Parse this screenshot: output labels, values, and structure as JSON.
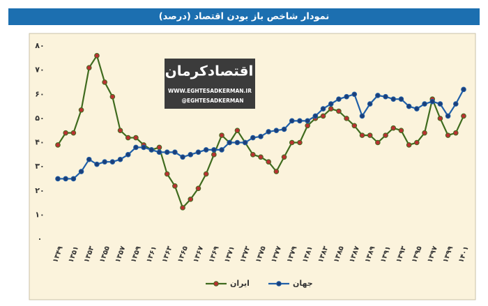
{
  "chart_data": {
    "type": "line",
    "title": "نمودار شاخص باز بودن اقتصاد (درصد)",
    "watermark": {
      "logo": "اقتصادکرمان",
      "site": "WWW.EGHTESADKERMAN.IR",
      "handle": "@EGHTESADKERMAN"
    },
    "categories": [
      "۱۳۴۹",
      null,
      "۱۳۵۱",
      null,
      "۱۳۵۳",
      null,
      "۱۳۵۵",
      null,
      "۱۳۵۷",
      null,
      "۱۳۵۹",
      null,
      "۱۳۶۱",
      null,
      "۱۳۶۳",
      null,
      "۱۳۶۵",
      null,
      "۱۳۶۷",
      null,
      "۱۳۶۹",
      null,
      "۱۳۷۱",
      null,
      "۱۳۷۳",
      null,
      "۱۳۷۵",
      null,
      "۱۳۷۷",
      null,
      "۱۳۷۹",
      null,
      "۱۳۸۱",
      null,
      "۱۳۸۳",
      null,
      "۱۳۸۵",
      null,
      "۱۳۸۷",
      null,
      "۱۳۸۹",
      null,
      "۱۳۹۱",
      null,
      "۱۳۹۳",
      null,
      "۱۳۹۵",
      null,
      "۱۳۹۷",
      null,
      "۱۳۹۹",
      null,
      "۱۴۰۱"
    ],
    "series": [
      {
        "name": "ایران",
        "color": "#3f6b1e",
        "values": [
          39,
          44,
          44,
          53.5,
          71,
          76,
          65,
          59,
          45,
          42,
          42,
          39,
          37,
          38,
          27,
          22,
          13,
          16.5,
          21,
          27,
          35,
          43,
          40,
          45,
          40,
          35,
          34,
          32,
          28,
          34,
          40,
          40,
          47,
          50,
          51,
          54,
          53,
          50,
          47,
          43,
          43,
          40,
          43,
          46,
          45,
          39,
          40,
          44,
          58,
          50,
          43,
          44,
          51
        ]
      },
      {
        "name": "جهان",
        "color": "#1f5fa8",
        "values": [
          25,
          25,
          25,
          28,
          33,
          31,
          32,
          32,
          33,
          35,
          38,
          38,
          37,
          36,
          36,
          36,
          34,
          35,
          36,
          37,
          37,
          37,
          40,
          40,
          40,
          42,
          42.5,
          44.5,
          45,
          45.5,
          49,
          49,
          49,
          51,
          54,
          56,
          58,
          59,
          60,
          51,
          56,
          59.5,
          59,
          58,
          58,
          55,
          54,
          56,
          57,
          56,
          51,
          56,
          62
        ]
      }
    ],
    "ylim": [
      0,
      80
    ],
    "yticks": [
      {
        "value": 0,
        "label": "۰"
      },
      {
        "value": 10,
        "label": "۱۰"
      },
      {
        "value": 20,
        "label": "۲۰"
      },
      {
        "value": 30,
        "label": "۳۰"
      },
      {
        "value": 40,
        "label": "۴۰"
      },
      {
        "value": 50,
        "label": "۵۰"
      },
      {
        "value": 60,
        "label": "۶۰"
      },
      {
        "value": 70,
        "label": "۷۰"
      },
      {
        "value": 80,
        "label": "۸۰"
      }
    ],
    "grid": false,
    "legend": "bottom"
  }
}
